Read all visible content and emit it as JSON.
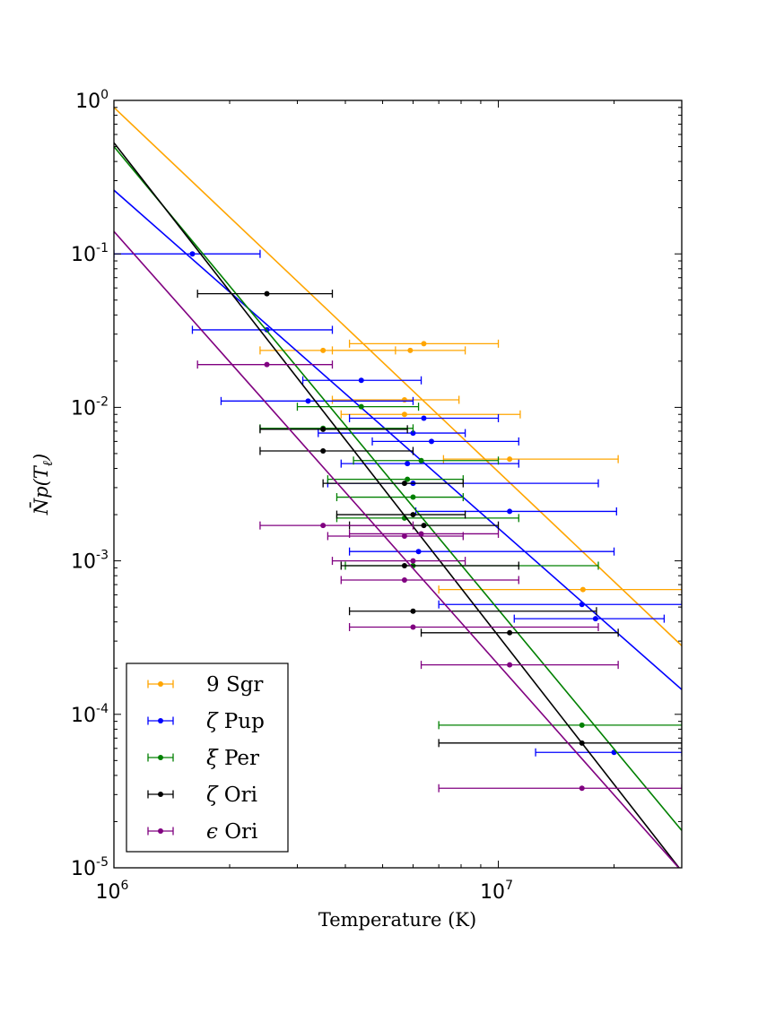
{
  "chart_data": {
    "type": "scatter",
    "title": "",
    "xlabel": "Temperature (K)",
    "ylabel": "N̄p(T_ℓ)",
    "xscale": "log",
    "yscale": "log",
    "xlim": [
      1000000,
      30000000
    ],
    "ylim": [
      1e-05,
      1
    ],
    "grid": false,
    "legend_position": "lower-left",
    "x_ticks": [
      {
        "value": 1000000,
        "base": "10",
        "exp": "6"
      },
      {
        "value": 10000000,
        "base": "10",
        "exp": "7"
      }
    ],
    "y_ticks": [
      {
        "value": 1,
        "base": "10",
        "exp": "0"
      },
      {
        "value": 0.1,
        "base": "10",
        "exp": "-1"
      },
      {
        "value": 0.01,
        "base": "10",
        "exp": "-2"
      },
      {
        "value": 0.001,
        "base": "10",
        "exp": "-3"
      },
      {
        "value": 0.0001,
        "base": "10",
        "exp": "-4"
      },
      {
        "value": 1e-05,
        "base": "10",
        "exp": "-5"
      }
    ],
    "series": [
      {
        "name": "9 Sgr",
        "symbol": "9",
        "star": "Sgr",
        "color": "#ffa500",
        "fit": {
          "x": [
            1000000,
            30000000
          ],
          "y": [
            0.9,
            0.00028
          ]
        },
        "points": [
          {
            "x": 6400000,
            "y": 0.026,
            "xmin": 4100000,
            "xmax": 10000000
          },
          {
            "x": 5900000,
            "y": 0.0235,
            "xmin": 3700000,
            "xmax": 8200000
          },
          {
            "x": 3500000,
            "y": 0.0235,
            "xmin": 2400000,
            "xmax": 5400000
          },
          {
            "x": 5700000,
            "y": 0.0112,
            "xmin": 3700000,
            "xmax": 7900000
          },
          {
            "x": 5700000,
            "y": 0.009,
            "xmin": 3900000,
            "xmax": 11400000
          },
          {
            "x": 10700000,
            "y": 0.0046,
            "xmin": 7200000,
            "xmax": 20500000
          },
          {
            "x": 16600000,
            "y": 0.00065,
            "xmin": 7000000,
            "xmax": 30000000
          }
        ]
      },
      {
        "name": "ζ Pup",
        "symbol": "ζ",
        "star": "Pup",
        "color": "#0000ff",
        "fit": {
          "x": [
            1000000,
            30000000
          ],
          "y": [
            0.26,
            0.000145
          ]
        },
        "points": [
          {
            "x": 1600000,
            "y": 0.1,
            "xmin": 1000000,
            "xmax": 2400000
          },
          {
            "x": 2500000,
            "y": 0.032,
            "xmin": 1600000,
            "xmax": 3700000
          },
          {
            "x": 4400000,
            "y": 0.015,
            "xmin": 3100000,
            "xmax": 6300000
          },
          {
            "x": 3200000,
            "y": 0.011,
            "xmin": 1900000,
            "xmax": 6000000
          },
          {
            "x": 6400000,
            "y": 0.0085,
            "xmin": 4100000,
            "xmax": 10000000
          },
          {
            "x": 6000000,
            "y": 0.0068,
            "xmin": 3400000,
            "xmax": 8200000
          },
          {
            "x": 6700000,
            "y": 0.006,
            "xmin": 4700000,
            "xmax": 11300000
          },
          {
            "x": 5800000,
            "y": 0.0043,
            "xmin": 3900000,
            "xmax": 11300000
          },
          {
            "x": 6000000,
            "y": 0.0032,
            "xmin": 3600000,
            "xmax": 18200000
          },
          {
            "x": 10700000,
            "y": 0.0021,
            "xmin": 6100000,
            "xmax": 20300000
          },
          {
            "x": 6200000,
            "y": 0.00115,
            "xmin": 4100000,
            "xmax": 20000000
          },
          {
            "x": 16500000,
            "y": 0.00052,
            "xmin": 7000000,
            "xmax": 30000000
          },
          {
            "x": 17900000,
            "y": 0.00042,
            "xmin": 11000000,
            "xmax": 27000000
          },
          {
            "x": 20000000,
            "y": 5.65e-05,
            "xmin": 12500000,
            "xmax": 30000000
          }
        ]
      },
      {
        "name": "ξ Per",
        "symbol": "ξ",
        "star": "Per",
        "color": "#008000",
        "fit": {
          "x": [
            1000000,
            30000000
          ],
          "y": [
            0.5,
            1.75e-05
          ]
        },
        "points": [
          {
            "x": 4400000,
            "y": 0.0101,
            "xmin": 3000000,
            "xmax": 6200000
          },
          {
            "x": 3500000,
            "y": 0.0073,
            "xmin": 2400000,
            "xmax": 6000000
          },
          {
            "x": 6300000,
            "y": 0.0045,
            "xmin": 4200000,
            "xmax": 10000000
          },
          {
            "x": 5800000,
            "y": 0.0034,
            "xmin": 3600000,
            "xmax": 8100000
          },
          {
            "x": 6000000,
            "y": 0.0026,
            "xmin": 3800000,
            "xmax": 8100000
          },
          {
            "x": 5700000,
            "y": 0.0019,
            "xmin": 3800000,
            "xmax": 11300000
          },
          {
            "x": 6000000,
            "y": 0.00093,
            "xmin": 4000000,
            "xmax": 18200000
          },
          {
            "x": 16500000,
            "y": 8.5e-05,
            "xmin": 7000000,
            "xmax": 30000000
          }
        ]
      },
      {
        "name": "ζ Ori",
        "symbol": "ζ",
        "star": "Ori",
        "color": "#000000",
        "fit": {
          "x": [
            1000000,
            30000000
          ],
          "y": [
            0.53,
            9.5e-06
          ]
        },
        "points": [
          {
            "x": 2500000,
            "y": 0.055,
            "xmin": 1650000,
            "xmax": 3700000
          },
          {
            "x": 3500000,
            "y": 0.0072,
            "xmin": 2400000,
            "xmax": 5800000
          },
          {
            "x": 3500000,
            "y": 0.0052,
            "xmin": 2400000,
            "xmax": 6000000
          },
          {
            "x": 5700000,
            "y": 0.0032,
            "xmin": 3500000,
            "xmax": 8100000
          },
          {
            "x": 6000000,
            "y": 0.002,
            "xmin": 3800000,
            "xmax": 8200000
          },
          {
            "x": 6400000,
            "y": 0.0017,
            "xmin": 4100000,
            "xmax": 10000000
          },
          {
            "x": 5700000,
            "y": 0.00093,
            "xmin": 3900000,
            "xmax": 11300000
          },
          {
            "x": 6000000,
            "y": 0.00047,
            "xmin": 4100000,
            "xmax": 18000000
          },
          {
            "x": 10700000,
            "y": 0.00034,
            "xmin": 6300000,
            "xmax": 20500000
          },
          {
            "x": 16500000,
            "y": 6.5e-05,
            "xmin": 7000000,
            "xmax": 30000000
          }
        ]
      },
      {
        "name": "ϵ Ori",
        "symbol": "ϵ",
        "star": "Ori",
        "color": "#800080",
        "fit": {
          "x": [
            1000000,
            30000000
          ],
          "y": [
            0.14,
            9.5e-06
          ]
        },
        "points": [
          {
            "x": 2500000,
            "y": 0.019,
            "xmin": 1650000,
            "xmax": 3700000
          },
          {
            "x": 3500000,
            "y": 0.0017,
            "xmin": 2400000,
            "xmax": 6000000
          },
          {
            "x": 5700000,
            "y": 0.00145,
            "xmin": 3600000,
            "xmax": 8100000
          },
          {
            "x": 6300000,
            "y": 0.0015,
            "xmin": 4100000,
            "xmax": 10000000
          },
          {
            "x": 6000000,
            "y": 0.001,
            "xmin": 3700000,
            "xmax": 8200000
          },
          {
            "x": 5700000,
            "y": 0.00075,
            "xmin": 3900000,
            "xmax": 11300000
          },
          {
            "x": 6000000,
            "y": 0.00037,
            "xmin": 4100000,
            "xmax": 18200000
          },
          {
            "x": 10700000,
            "y": 0.00021,
            "xmin": 6300000,
            "xmax": 20500000
          },
          {
            "x": 16500000,
            "y": 3.3e-05,
            "xmin": 7000000,
            "xmax": 30000000
          }
        ]
      }
    ]
  }
}
